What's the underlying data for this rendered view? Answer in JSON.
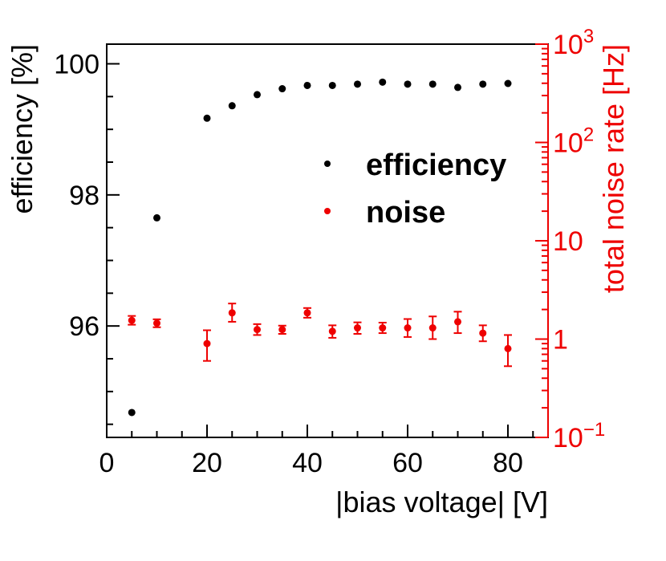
{
  "chart_data": {
    "type": "scatter",
    "xlabel": "|bias voltage| [V]",
    "ylabel_left": "efficiency [%]",
    "ylabel_right": "total noise rate [Hz]",
    "xlim": [
      0,
      88
    ],
    "ylim_left": [
      94.3,
      100.3
    ],
    "ylim_right_log10": [
      -1,
      3
    ],
    "x_ticks": [
      {
        "value": 0,
        "label": "0"
      },
      {
        "value": 20,
        "label": "20"
      },
      {
        "value": 40,
        "label": "40"
      },
      {
        "value": 60,
        "label": "60"
      },
      {
        "value": 80,
        "label": "80"
      }
    ],
    "y_left_ticks": [
      {
        "value": 96,
        "label": "96"
      },
      {
        "value": 98,
        "label": "98"
      },
      {
        "value": 100,
        "label": "100"
      }
    ],
    "y_right_ticks": [
      {
        "base": "10",
        "exp": "−1"
      },
      {
        "base": "1",
        "exp": ""
      },
      {
        "base": "10",
        "exp": ""
      },
      {
        "base": "10",
        "exp": "2"
      },
      {
        "base": "10",
        "exp": "3"
      }
    ],
    "legend": [
      {
        "name": "efficiency",
        "color": "#000000"
      },
      {
        "name": "noise",
        "color": "#ee0000"
      }
    ],
    "series": [
      {
        "name": "efficiency",
        "axis": "left",
        "color": "#000000",
        "x": [
          5,
          10,
          20,
          25,
          30,
          35,
          40,
          45,
          50,
          55,
          60,
          65,
          70,
          75,
          80
        ],
        "y": [
          94.68,
          97.65,
          99.17,
          99.36,
          99.53,
          99.62,
          99.67,
          99.67,
          99.69,
          99.72,
          99.69,
          99.69,
          99.64,
          99.69,
          99.7
        ]
      },
      {
        "name": "noise",
        "axis": "right",
        "color": "#ee0000",
        "x": [
          5,
          10,
          20,
          25,
          30,
          35,
          40,
          45,
          50,
          55,
          60,
          65,
          70,
          75,
          80
        ],
        "y": [
          1.55,
          1.45,
          0.9,
          1.85,
          1.25,
          1.25,
          1.85,
          1.2,
          1.3,
          1.3,
          1.3,
          1.3,
          1.5,
          1.15,
          0.8
        ],
        "err_low": [
          0.15,
          0.13,
          0.3,
          0.35,
          0.15,
          0.12,
          0.2,
          0.17,
          0.17,
          0.15,
          0.25,
          0.3,
          0.35,
          0.2,
          0.27
        ],
        "err_high": [
          0.17,
          0.14,
          0.33,
          0.45,
          0.17,
          0.12,
          0.22,
          0.18,
          0.18,
          0.17,
          0.3,
          0.4,
          0.4,
          0.23,
          0.3
        ]
      }
    ]
  }
}
